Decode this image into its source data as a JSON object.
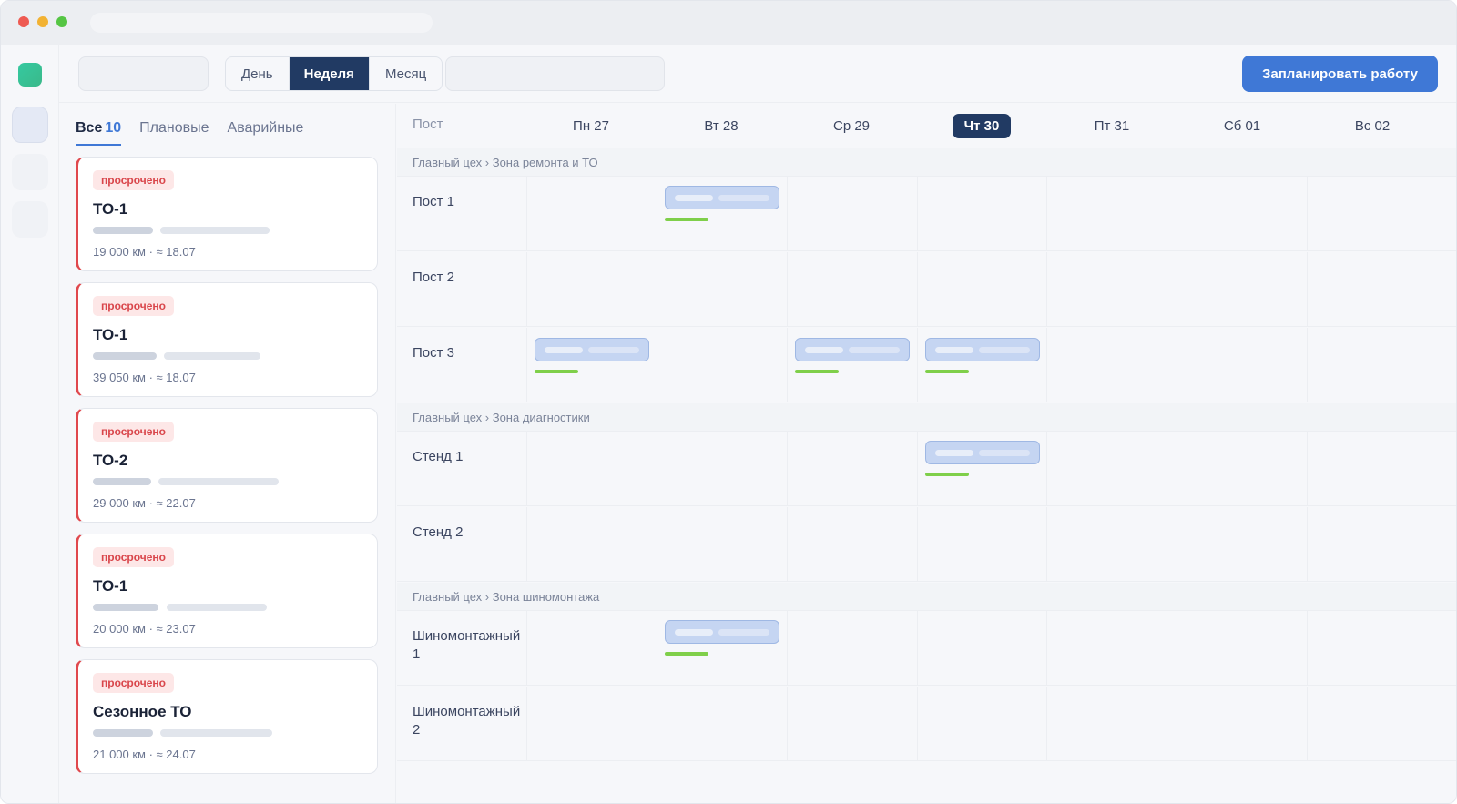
{
  "topbar": {
    "view_modes": [
      "День",
      "Неделя",
      "Месяц"
    ],
    "active_view": "Неделя",
    "schedule_button": "Запланировать работу"
  },
  "sidebar": {
    "filters": {
      "all_label": "Все",
      "all_count": "10",
      "planned_label": "Плановые",
      "emergency_label": "Аварийные"
    },
    "cards": [
      {
        "badge": "просрочено",
        "title": "ТО-1",
        "meta": "19 000 км · ≈ 18.07"
      },
      {
        "badge": "просрочено",
        "title": "ТО-1",
        "meta": "39 050 км · ≈ 18.07"
      },
      {
        "badge": "просрочено",
        "title": "ТО-2",
        "meta": "29 000 км · ≈ 22.07"
      },
      {
        "badge": "просрочено",
        "title": "ТО-1",
        "meta": "20 000 км · ≈ 23.07"
      },
      {
        "badge": "просрочено",
        "title": "Сезонное ТО",
        "meta": "21 000 км · ≈ 24.07"
      }
    ]
  },
  "calendar": {
    "post_header": "Пост",
    "days": [
      "Пн 27",
      "Вт 28",
      "Ср 29",
      "Чт 30",
      "Пт 31",
      "Сб 01",
      "Вс 02"
    ],
    "today": "Чт 30",
    "groups": [
      {
        "label": "Главный цех › Зона ремонта и ТО",
        "rows": [
          "Пост 1",
          "Пост 2",
          "Пост 3"
        ]
      },
      {
        "label": "Главный цех › Зона диагностики",
        "rows": [
          "Стенд 1",
          "Стенд 2"
        ]
      },
      {
        "label": "Главный цех › Зона шиномонтажа",
        "rows": [
          "Шиномонтажный 1",
          "Шиномонтажный 2"
        ]
      }
    ]
  },
  "colors": {
    "accent": "#3f78d6",
    "active_segment": "#213a63",
    "overdue": "#e0484d",
    "event": "#c5d5f2",
    "progress": "#7fcf4a"
  }
}
